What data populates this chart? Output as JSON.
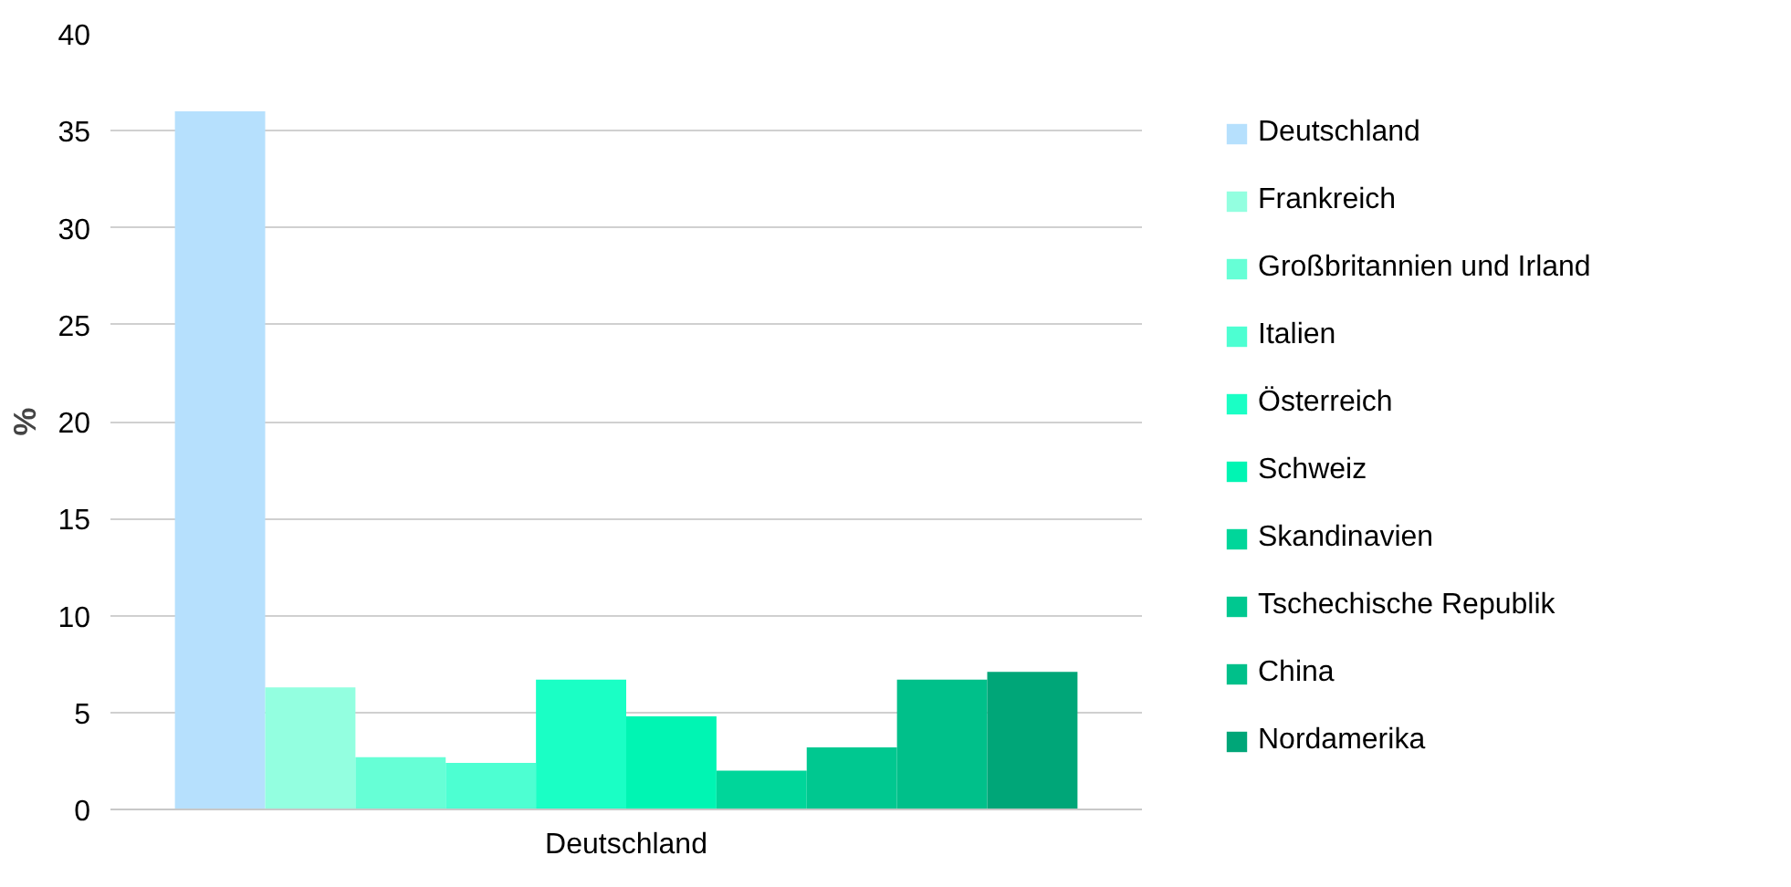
{
  "chart_data": {
    "type": "bar",
    "categories": [
      "Deutschland"
    ],
    "ylabel": "%",
    "ylim": [
      0,
      40
    ],
    "yticks": [
      0,
      5,
      10,
      15,
      20,
      25,
      30,
      35,
      40
    ],
    "grid": "y",
    "legend": "right",
    "series": [
      {
        "name": "Deutschland",
        "color": "#b6e0fd",
        "values": [
          36
        ]
      },
      {
        "name": "Frankreich",
        "color": "#93ffe0",
        "values": [
          6.3
        ]
      },
      {
        "name": "Großbritannien und Irland",
        "color": "#66ffd6",
        "values": [
          2.7
        ]
      },
      {
        "name": "Italien",
        "color": "#4dffd2",
        "values": [
          2.4
        ]
      },
      {
        "name": "Österreich",
        "color": "#1affc5",
        "values": [
          6.7
        ]
      },
      {
        "name": "Schweiz",
        "color": "#00f5b3",
        "values": [
          4.8
        ]
      },
      {
        "name": "Skandinavien",
        "color": "#00d69a",
        "values": [
          2.0
        ]
      },
      {
        "name": "Tschechische Republik",
        "color": "#00c890",
        "values": [
          3.2
        ]
      },
      {
        "name": "China",
        "color": "#00c08a",
        "values": [
          6.7
        ]
      },
      {
        "name": "Nordamerika",
        "color": "#00a678",
        "values": [
          7.1
        ]
      }
    ]
  }
}
